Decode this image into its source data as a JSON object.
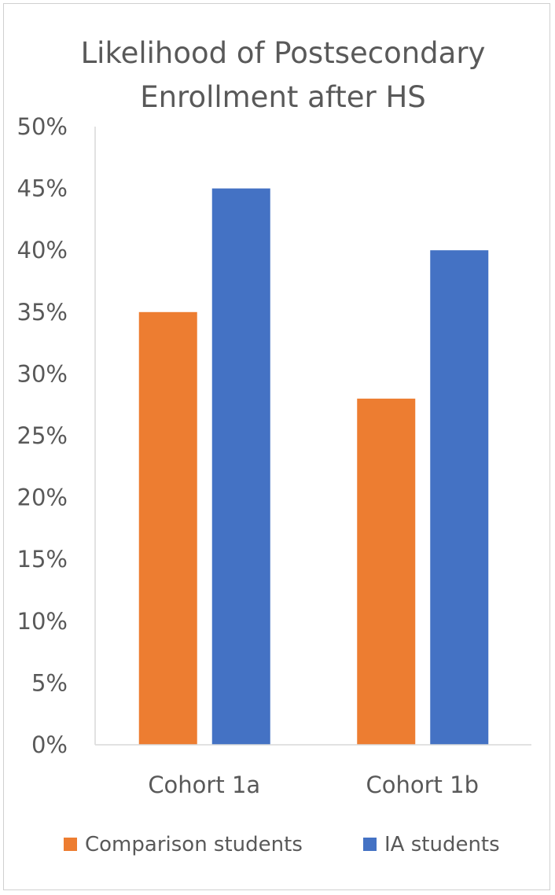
{
  "chart_data": {
    "type": "bar",
    "title": "Likelihood of Postsecondary Enrollment after HS",
    "title_lines": [
      "Likelihood of Postsecondary",
      "Enrollment after HS"
    ],
    "categories": [
      "Cohort 1a",
      "Cohort 1b"
    ],
    "series": [
      {
        "name": "Comparison students",
        "values": [
          0.35,
          0.28
        ],
        "color": "#ED7D31"
      },
      {
        "name": "IA students",
        "values": [
          0.45,
          0.4
        ],
        "color": "#4472C4"
      }
    ],
    "ylim": [
      0,
      0.5
    ],
    "yticks": [
      0,
      0.05,
      0.1,
      0.15,
      0.2,
      0.25,
      0.3,
      0.35,
      0.4,
      0.45,
      0.5
    ],
    "ytick_labels": [
      "0%",
      "5%",
      "10%",
      "15%",
      "20%",
      "25%",
      "30%",
      "35%",
      "40%",
      "45%",
      "50%"
    ],
    "xlabel": "",
    "ylabel": "",
    "grid": false,
    "legend_position": "bottom"
  }
}
